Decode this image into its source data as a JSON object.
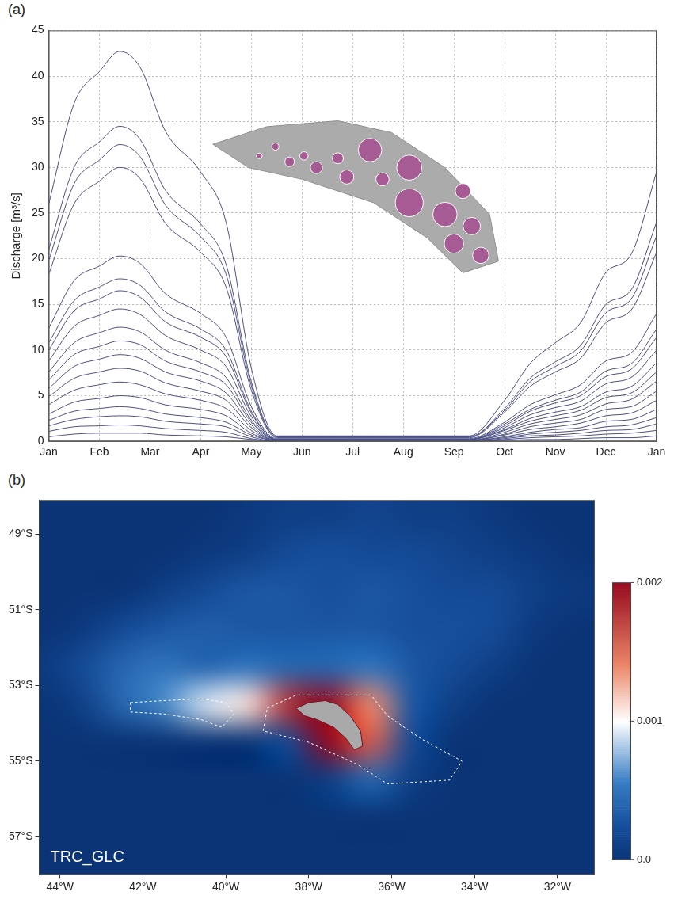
{
  "chart_data": [
    {
      "type": "line",
      "panel": "(a)",
      "y_label": "Discharge [m³/s]",
      "color": "#4b5084",
      "grid": true,
      "legend": false,
      "xlim": [
        0,
        12
      ],
      "xticks": [
        {
          "value": 0,
          "label": "Jan"
        },
        {
          "value": 1,
          "label": "Feb"
        },
        {
          "value": 2,
          "label": "Mar"
        },
        {
          "value": 3,
          "label": "Apr"
        },
        {
          "value": 4,
          "label": "May"
        },
        {
          "value": 5,
          "label": "Jun"
        },
        {
          "value": 6,
          "label": "Jul"
        },
        {
          "value": 7,
          "label": "Aug"
        },
        {
          "value": 8,
          "label": "Sep"
        },
        {
          "value": 9,
          "label": "Oct"
        },
        {
          "value": 10,
          "label": "Nov"
        },
        {
          "value": 11,
          "label": "Dec"
        },
        {
          "value": 12,
          "label": "Jan"
        }
      ],
      "ylim": [
        0,
        45
      ],
      "yticks": [
        0,
        5,
        10,
        15,
        20,
        25,
        30,
        35,
        40,
        45
      ],
      "x": [
        0,
        0.5,
        1,
        1.4,
        1.8,
        2.3,
        3,
        3.5,
        4,
        4.5,
        8.3,
        9,
        9.5,
        10,
        10.5,
        11,
        11.5,
        12
      ],
      "series": [
        {
          "values": [
            26,
            37,
            40.5,
            42.7,
            41,
            34,
            29.5,
            24,
            8,
            0.6,
            0.6,
            4.5,
            8.5,
            10.8,
            13,
            18.5,
            20.5,
            29.5
          ]
        },
        {
          "values": [
            21,
            30,
            32.8,
            34.5,
            33.1,
            27.5,
            23.8,
            19.4,
            6.5,
            0.5,
            0.5,
            3.6,
            6.9,
            8.7,
            10.5,
            15,
            16.6,
            24
          ]
        },
        {
          "values": [
            19.8,
            28.2,
            30.8,
            32.5,
            31.2,
            25.9,
            22.4,
            18.3,
            6.1,
            0.5,
            0.5,
            3.4,
            6.5,
            8.2,
            9.9,
            14.1,
            15.6,
            22.5
          ]
        },
        {
          "values": [
            18.3,
            26,
            28.5,
            30,
            28.8,
            23.9,
            20.7,
            16.9,
            5.6,
            0.4,
            0.4,
            3.2,
            6,
            7.6,
            9.1,
            13,
            14.4,
            20.7
          ]
        },
        {
          "values": [
            12.4,
            17.6,
            19.2,
            20.3,
            19.5,
            16.2,
            14,
            11.4,
            3.8,
            0.3,
            0.3,
            2.1,
            4,
            5.1,
            6.2,
            8.8,
            9.7,
            14
          ]
        },
        {
          "values": [
            10.8,
            15.4,
            16.9,
            17.8,
            17.1,
            14.2,
            12.3,
            10,
            3.3,
            0.2,
            0.2,
            1.9,
            3.5,
            4.5,
            5.4,
            7.7,
            8.5,
            12.3
          ]
        },
        {
          "values": [
            10,
            14.3,
            15.6,
            16.5,
            15.8,
            13.1,
            11.4,
            9.3,
            3.1,
            0.2,
            0.2,
            1.7,
            3.3,
            4.2,
            5,
            7.1,
            7.9,
            11.4
          ]
        },
        {
          "values": [
            8.8,
            12.6,
            13.8,
            14.5,
            13.9,
            11.6,
            10,
            8.2,
            2.7,
            0.2,
            0.2,
            1.5,
            2.9,
            3.7,
            4.4,
            6.3,
            7,
            10
          ]
        },
        {
          "values": [
            7.6,
            10.8,
            11.9,
            12.5,
            12,
            10,
            8.6,
            7,
            2.3,
            0.2,
            0.2,
            1.3,
            2.5,
            3.2,
            3.8,
            5.4,
            6,
            8.6
          ]
        },
        {
          "values": [
            6.7,
            9.5,
            10.4,
            11,
            10.6,
            8.8,
            7.6,
            6.2,
            2.1,
            0.2,
            0.2,
            1.2,
            2.2,
            2.8,
            3.4,
            4.8,
            5.3,
            7.6
          ]
        },
        {
          "values": [
            5.8,
            8.2,
            9,
            9.5,
            9.1,
            7.6,
            6.6,
            5.3,
            1.8,
            0.1,
            0.1,
            1,
            1.9,
            2.4,
            2.9,
            4.1,
            4.6,
            6.6
          ]
        },
        {
          "values": [
            4.9,
            6.9,
            7.6,
            8,
            7.7,
            6.4,
            5.5,
            4.5,
            1.5,
            0.1,
            0.1,
            0.8,
            1.6,
            2,
            2.4,
            3.5,
            3.8,
            5.5
          ]
        },
        {
          "values": [
            4,
            5.6,
            6.2,
            6.5,
            6.2,
            5.2,
            4.5,
            3.6,
            1.2,
            0.1,
            0.1,
            0.7,
            1.3,
            1.6,
            2,
            2.8,
            3.1,
            4.5
          ]
        },
        {
          "values": [
            3,
            4.3,
            4.7,
            5,
            4.8,
            4,
            3.5,
            2.8,
            0.9,
            0.1,
            0.1,
            0.5,
            1,
            1.3,
            1.5,
            2.2,
            2.4,
            3.5
          ]
        },
        {
          "values": [
            2.3,
            3.3,
            3.6,
            3.8,
            3.6,
            3,
            2.6,
            2.1,
            0.7,
            0.1,
            0.1,
            0.4,
            0.8,
            1,
            1.2,
            1.6,
            1.8,
            2.6
          ]
        },
        {
          "values": [
            1.7,
            2.4,
            2.7,
            2.8,
            2.7,
            2.2,
            1.9,
            1.6,
            0.5,
            0,
            0,
            0.3,
            0.6,
            0.7,
            0.9,
            1.2,
            1.3,
            1.9
          ]
        },
        {
          "values": [
            1.1,
            1.6,
            1.7,
            1.8,
            1.7,
            1.4,
            1.2,
            1,
            0.3,
            0,
            0,
            0.2,
            0.4,
            0.5,
            0.6,
            0.8,
            0.9,
            1.2
          ]
        },
        {
          "values": [
            0.5,
            0.8,
            0.9,
            0.9,
            0.9,
            0.7,
            0.6,
            0.5,
            0.2,
            0,
            0,
            0.1,
            0.2,
            0.2,
            0.3,
            0.4,
            0.4,
            0.6
          ]
        }
      ],
      "inset": {
        "land": [
          [
            -38.3,
            -53.6
          ],
          [
            -38.0,
            -53.45
          ],
          [
            -37.6,
            -53.4
          ],
          [
            -37.3,
            -53.5
          ],
          [
            -37.0,
            -53.8
          ],
          [
            -36.75,
            -54.2
          ],
          [
            -36.7,
            -54.6
          ],
          [
            -36.9,
            -54.7
          ],
          [
            -37.1,
            -54.4
          ],
          [
            -37.4,
            -54.1
          ],
          [
            -37.8,
            -53.9
          ],
          [
            -38.1,
            -53.8
          ]
        ],
        "outlets": [
          {
            "lon": -38.04,
            "lat": -53.7,
            "discharge": 1.8
          },
          {
            "lon": -37.95,
            "lat": -53.62,
            "discharge": 2.8
          },
          {
            "lon": -37.87,
            "lat": -53.75,
            "discharge": 5
          },
          {
            "lon": -37.79,
            "lat": -53.7,
            "discharge": 3.8
          },
          {
            "lon": -37.72,
            "lat": -53.8,
            "discharge": 8
          },
          {
            "lon": -37.6,
            "lat": -53.72,
            "discharge": 6.5
          },
          {
            "lon": -37.55,
            "lat": -53.88,
            "discharge": 11
          },
          {
            "lon": -37.42,
            "lat": -53.65,
            "discharge": 30
          },
          {
            "lon": -37.35,
            "lat": -53.9,
            "discharge": 9.5
          },
          {
            "lon": -37.2,
            "lat": -53.8,
            "discharge": 34.5
          },
          {
            "lon": -37.2,
            "lat": -54.1,
            "discharge": 42.7
          },
          {
            "lon": -37.0,
            "lat": -54.2,
            "discharge": 32.5
          },
          {
            "lon": -36.9,
            "lat": -54.0,
            "discharge": 12.5
          },
          {
            "lon": -36.85,
            "lat": -54.3,
            "discharge": 16.5
          },
          {
            "lon": -36.95,
            "lat": -54.45,
            "discharge": 20.3
          },
          {
            "lon": -36.8,
            "lat": -54.55,
            "discharge": 14.5
          }
        ]
      }
    },
    {
      "type": "map",
      "panel": "(b)",
      "label": "TRC_GLC",
      "grid": false,
      "legend": false,
      "xlim": [
        -44.5,
        -31.1
      ],
      "xticks": [
        {
          "value": -44,
          "label": "44°W"
        },
        {
          "value": -42,
          "label": "42°W"
        },
        {
          "value": -40,
          "label": "40°W"
        },
        {
          "value": -38,
          "label": "38°W"
        },
        {
          "value": -36,
          "label": "36°W"
        },
        {
          "value": -34,
          "label": "34°W"
        },
        {
          "value": -32,
          "label": "32°W"
        }
      ],
      "ylim": [
        -58,
        -48.1
      ],
      "yticks": [
        {
          "value": -49,
          "label": "49°S"
        },
        {
          "value": -51,
          "label": "51°S"
        },
        {
          "value": -53,
          "label": "53°S"
        },
        {
          "value": -55,
          "label": "55°S"
        },
        {
          "value": -57,
          "label": "57°S"
        }
      ],
      "lon": [
        -44.5,
        -43.5,
        -42.5,
        -41.5,
        -40.5,
        -39.5,
        -38.5,
        -37.5,
        -36.5,
        -35.5,
        -34.5,
        -33.5,
        -32.5,
        -31.5
      ],
      "lat": [
        -48.5,
        -49.5,
        -50.5,
        -51.5,
        -52.5,
        -53.5,
        -54.5,
        -55.5,
        -56.5,
        -57.5
      ],
      "cells": [
        [
          0,
          0,
          0,
          0,
          0,
          5e-05,
          0.0001,
          0.0001,
          0.00015,
          0.0001,
          0.0001,
          5e-05,
          0,
          0
        ],
        [
          0,
          0,
          0,
          0,
          5e-05,
          0.0001,
          0.0002,
          0.00025,
          0.0002,
          0.0002,
          0.00015,
          0.0001,
          5e-05,
          0
        ],
        [
          0,
          0,
          0,
          0.0001,
          0.0002,
          0.0003,
          0.0003,
          0.00025,
          0.0003,
          0.00025,
          0.0002,
          0.0002,
          0.0001,
          5e-05
        ],
        [
          0,
          5e-05,
          0.0002,
          0.0003,
          0.00035,
          0.0003,
          0.0003,
          0.0003,
          0.0003,
          0.00025,
          0.00025,
          0.0002,
          5e-05,
          0
        ],
        [
          5e-05,
          0.0002,
          0.0004,
          0.0005,
          0.0004,
          0.0005,
          0.0004,
          0.0004,
          0.0005,
          0.0003,
          0.0002,
          0.0001,
          0,
          0
        ],
        [
          0,
          0.0001,
          0.0004,
          0.0006,
          0.0009,
          0.0011,
          0.0018,
          0.0025,
          0.0014,
          0.0003,
          0.0001,
          0,
          0,
          0
        ],
        [
          0,
          0,
          0,
          0,
          0,
          0,
          0.0002,
          0.0022,
          0.0016,
          0.0002,
          0,
          0,
          0,
          0
        ],
        [
          0,
          0,
          0,
          0,
          0,
          0,
          0,
          0.0001,
          0.0004,
          0.0001,
          0,
          0,
          0,
          0
        ],
        [
          0,
          0,
          0,
          0,
          0,
          0,
          0,
          0,
          0,
          0,
          0,
          0,
          0,
          0
        ],
        [
          0,
          0,
          0,
          0,
          0,
          0,
          0,
          0,
          0,
          0,
          0,
          0,
          0,
          0
        ]
      ],
      "colorbar": {
        "range": [
          0,
          0.002
        ],
        "ticks": [
          {
            "value": 0,
            "label": "0.0"
          },
          0.001,
          0.002
        ]
      },
      "land": [
        [
          -38.3,
          -53.6
        ],
        [
          -38.0,
          -53.45
        ],
        [
          -37.6,
          -53.4
        ],
        [
          -37.3,
          -53.5
        ],
        [
          -37.0,
          -53.8
        ],
        [
          -36.75,
          -54.2
        ],
        [
          -36.7,
          -54.6
        ],
        [
          -36.9,
          -54.7
        ],
        [
          -37.1,
          -54.4
        ],
        [
          -37.4,
          -54.1
        ],
        [
          -37.8,
          -53.9
        ],
        [
          -38.1,
          -53.8
        ]
      ],
      "shelf": [
        [
          [
            -42.3,
            -53.45
          ],
          [
            -41.5,
            -53.4
          ],
          [
            -40.6,
            -53.35
          ],
          [
            -40.0,
            -53.45
          ],
          [
            -39.8,
            -53.75
          ],
          [
            -40.1,
            -54.1
          ],
          [
            -40.6,
            -53.9
          ],
          [
            -41.5,
            -53.75
          ],
          [
            -42.3,
            -53.7
          ]
        ],
        [
          [
            -39.0,
            -53.6
          ],
          [
            -38.3,
            -53.25
          ],
          [
            -36.5,
            -53.25
          ],
          [
            -36.1,
            -53.8
          ],
          [
            -35.3,
            -54.4
          ],
          [
            -34.3,
            -55.0
          ],
          [
            -34.6,
            -55.5
          ],
          [
            -36.1,
            -55.6
          ],
          [
            -36.8,
            -55.1
          ],
          [
            -38.0,
            -54.5
          ],
          [
            -39.1,
            -54.2
          ]
        ]
      ]
    }
  ]
}
